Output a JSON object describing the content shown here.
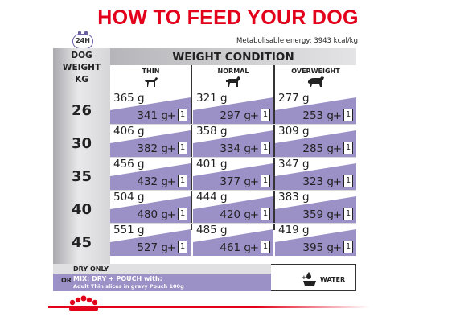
{
  "title": "HOW TO FEED YOUR DOG",
  "badge": "24H",
  "energy": "Metabolisable energy: 3943 kcal/kg",
  "table": {
    "weight_header": [
      "DOG",
      "WEIGHT",
      "KG"
    ],
    "condition_header": "WEIGHT CONDITION",
    "columns": [
      "THIN",
      "NORMAL",
      "OVERWEIGHT"
    ],
    "rows": [
      {
        "kg": "26",
        "cells": [
          {
            "dry": "365 g",
            "mix": "341 g"
          },
          {
            "dry": "321 g",
            "mix": "297 g"
          },
          {
            "dry": "277 g",
            "mix": "253 g"
          }
        ]
      },
      {
        "kg": "30",
        "cells": [
          {
            "dry": "406 g",
            "mix": "382 g"
          },
          {
            "dry": "358 g",
            "mix": "334 g"
          },
          {
            "dry": "309 g",
            "mix": "285 g"
          }
        ]
      },
      {
        "kg": "35",
        "cells": [
          {
            "dry": "456 g",
            "mix": "432 g"
          },
          {
            "dry": "401 g",
            "mix": "377 g"
          },
          {
            "dry": "347 g",
            "mix": "323 g"
          }
        ]
      },
      {
        "kg": "40",
        "cells": [
          {
            "dry": "504 g",
            "mix": "480 g"
          },
          {
            "dry": "444 g",
            "mix": "420 g"
          },
          {
            "dry": "383 g",
            "mix": "359 g"
          }
        ]
      },
      {
        "kg": "45",
        "cells": [
          {
            "dry": "551 g",
            "mix": "527 g"
          },
          {
            "dry": "485 g",
            "mix": "461 g"
          },
          {
            "dry": "419 g",
            "mix": "395 g"
          }
        ]
      }
    ],
    "plus": "+",
    "pouch_count": "1"
  },
  "legend": {
    "dry_only": "DRY ONLY",
    "or": "OR",
    "mix": "MIX: DRY + POUCH with:",
    "mix_detail": "Adult Thin slices in gravy Pouch 100g",
    "water": "WATER"
  },
  "colors": {
    "brand_red": "#e2001a",
    "purple": "#9b91c7",
    "gray": "#e0e0e3"
  },
  "icons": [
    "clock-24h-icon",
    "thin-dog-icon",
    "normal-dog-icon",
    "overweight-dog-icon",
    "pouch-icon",
    "water-bowl-icon",
    "royal-canin-crown-icon"
  ]
}
